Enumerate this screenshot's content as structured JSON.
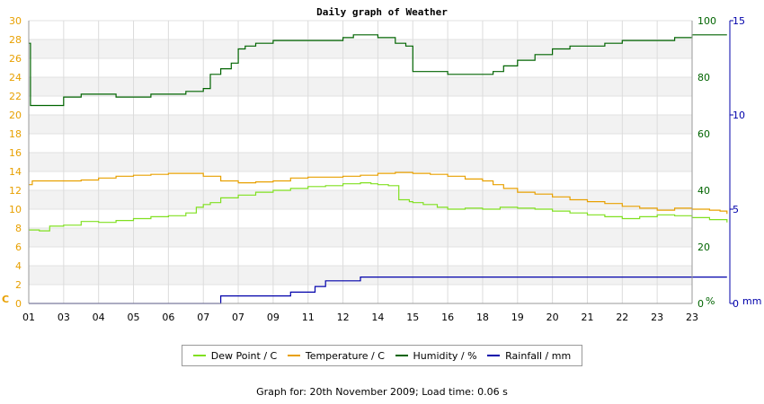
{
  "chart_data": {
    "type": "line",
    "title": "Daily graph of Weather",
    "x_tick_labels": [
      "01",
      "03",
      "04",
      "05",
      "06",
      "07",
      "07",
      "09",
      "11",
      "12",
      "14",
      "15",
      "16",
      "18",
      "19",
      "20",
      "21",
      "22",
      "23",
      "23"
    ],
    "axes": {
      "left": {
        "unit_label": "C",
        "min": 0,
        "max": 30,
        "ticks": [
          0,
          2,
          4,
          6,
          8,
          10,
          12,
          14,
          16,
          18,
          20,
          22,
          24,
          26,
          28,
          30
        ],
        "color": "#e8a000"
      },
      "right1": {
        "unit_label": "%",
        "min": 0,
        "max": 100,
        "ticks": [
          0,
          20,
          40,
          60,
          80,
          100
        ],
        "color": "#006400"
      },
      "right2": {
        "unit_label": "mm",
        "min": 0,
        "max": 15,
        "ticks": [
          0,
          5,
          10,
          15
        ],
        "color": "#0000aa"
      }
    },
    "grid": true,
    "legend_placement": "bottom",
    "series": [
      {
        "name": "Dew Point / C",
        "axis": "left",
        "color": "#80e020",
        "x": [
          0,
          0.3,
          0.6,
          1.0,
          1.5,
          2.0,
          2.5,
          3.0,
          3.5,
          4.0,
          4.5,
          4.8,
          5.0,
          5.2,
          5.5,
          6.0,
          6.5,
          7.0,
          7.5,
          8.0,
          8.5,
          9.0,
          9.5,
          9.8,
          10.0,
          10.3,
          10.6,
          10.9,
          11.0,
          11.3,
          11.7,
          12.0,
          12.5,
          13.0,
          13.5,
          14.0,
          14.5,
          15.0,
          15.5,
          16.0,
          16.5,
          17.0,
          17.5,
          18.0,
          18.5,
          19.0,
          19.5,
          20.0
        ],
        "y": [
          7.8,
          7.7,
          8.2,
          8.3,
          8.7,
          8.6,
          8.8,
          9.0,
          9.2,
          9.3,
          9.6,
          10.2,
          10.5,
          10.7,
          11.2,
          11.5,
          11.8,
          12.0,
          12.2,
          12.4,
          12.5,
          12.7,
          12.8,
          12.7,
          12.6,
          12.5,
          11.0,
          10.8,
          10.7,
          10.5,
          10.2,
          10.0,
          10.1,
          10.0,
          10.2,
          10.1,
          10.0,
          9.8,
          9.6,
          9.4,
          9.2,
          9.0,
          9.2,
          9.4,
          9.3,
          9.1,
          8.9,
          8.6
        ]
      },
      {
        "name": "Temperature / C",
        "axis": "left",
        "color": "#e8a000",
        "x": [
          0,
          0.1,
          0.5,
          1.0,
          1.5,
          2.0,
          2.5,
          3.0,
          3.5,
          4.0,
          4.5,
          5.0,
          5.5,
          6.0,
          6.5,
          7.0,
          7.5,
          8.0,
          8.5,
          9.0,
          9.5,
          10.0,
          10.5,
          11.0,
          11.5,
          12.0,
          12.5,
          13.0,
          13.3,
          13.6,
          14.0,
          14.5,
          15.0,
          15.5,
          16.0,
          16.5,
          17.0,
          17.5,
          18.0,
          18.5,
          19.0,
          19.5,
          19.8,
          20.0
        ],
        "y": [
          12.6,
          13.0,
          13.0,
          13.0,
          13.1,
          13.3,
          13.5,
          13.6,
          13.7,
          13.8,
          13.8,
          13.5,
          13.0,
          12.8,
          12.9,
          13.0,
          13.3,
          13.4,
          13.4,
          13.5,
          13.6,
          13.8,
          13.9,
          13.8,
          13.7,
          13.5,
          13.2,
          13.0,
          12.6,
          12.2,
          11.8,
          11.6,
          11.3,
          11.0,
          10.8,
          10.6,
          10.3,
          10.1,
          9.9,
          10.1,
          10.0,
          9.9,
          9.8,
          9.5
        ]
      },
      {
        "name": "Humidity / %",
        "axis": "right1",
        "color": "#006400",
        "x": [
          0,
          0.05,
          0.5,
          1.0,
          1.5,
          2.0,
          2.5,
          3.0,
          3.5,
          4.0,
          4.5,
          5.0,
          5.2,
          5.5,
          5.8,
          6.0,
          6.2,
          6.5,
          7.0,
          7.5,
          8.0,
          8.5,
          9.0,
          9.3,
          9.6,
          10.0,
          10.3,
          10.5,
          10.8,
          11.0,
          11.5,
          12.0,
          12.5,
          13.0,
          13.3,
          13.6,
          14.0,
          14.5,
          15.0,
          15.5,
          16.0,
          16.5,
          17.0,
          17.5,
          18.0,
          18.5,
          19.0,
          19.5,
          20.0
        ],
        "y": [
          92,
          70,
          70,
          73,
          74,
          74,
          73,
          73,
          74,
          74,
          75,
          76,
          81,
          83,
          85,
          90,
          91,
          92,
          93,
          93,
          93,
          93,
          94,
          95,
          95,
          94,
          94,
          92,
          91,
          82,
          82,
          81,
          81,
          81,
          82,
          84,
          86,
          88,
          90,
          91,
          91,
          92,
          93,
          93,
          93,
          94,
          95,
          95,
          95
        ]
      },
      {
        "name": "Rainfall / mm",
        "axis": "right2",
        "color": "#0000aa",
        "x": [
          0,
          2.0,
          4.0,
          5.0,
          5.5,
          6.0,
          6.5,
          7.0,
          7.5,
          8.0,
          8.2,
          8.5,
          9.0,
          9.5,
          10.0,
          12.0,
          14.0,
          16.0,
          18.0,
          20.0
        ],
        "y": [
          0,
          0,
          0,
          0,
          0.4,
          0.4,
          0.4,
          0.4,
          0.6,
          0.6,
          0.9,
          1.2,
          1.2,
          1.4,
          1.4,
          1.4,
          1.4,
          1.4,
          1.4,
          1.4
        ]
      }
    ]
  },
  "footer": {
    "text": "Graph for: 20th November 2009; Load time: 0.06 s"
  }
}
